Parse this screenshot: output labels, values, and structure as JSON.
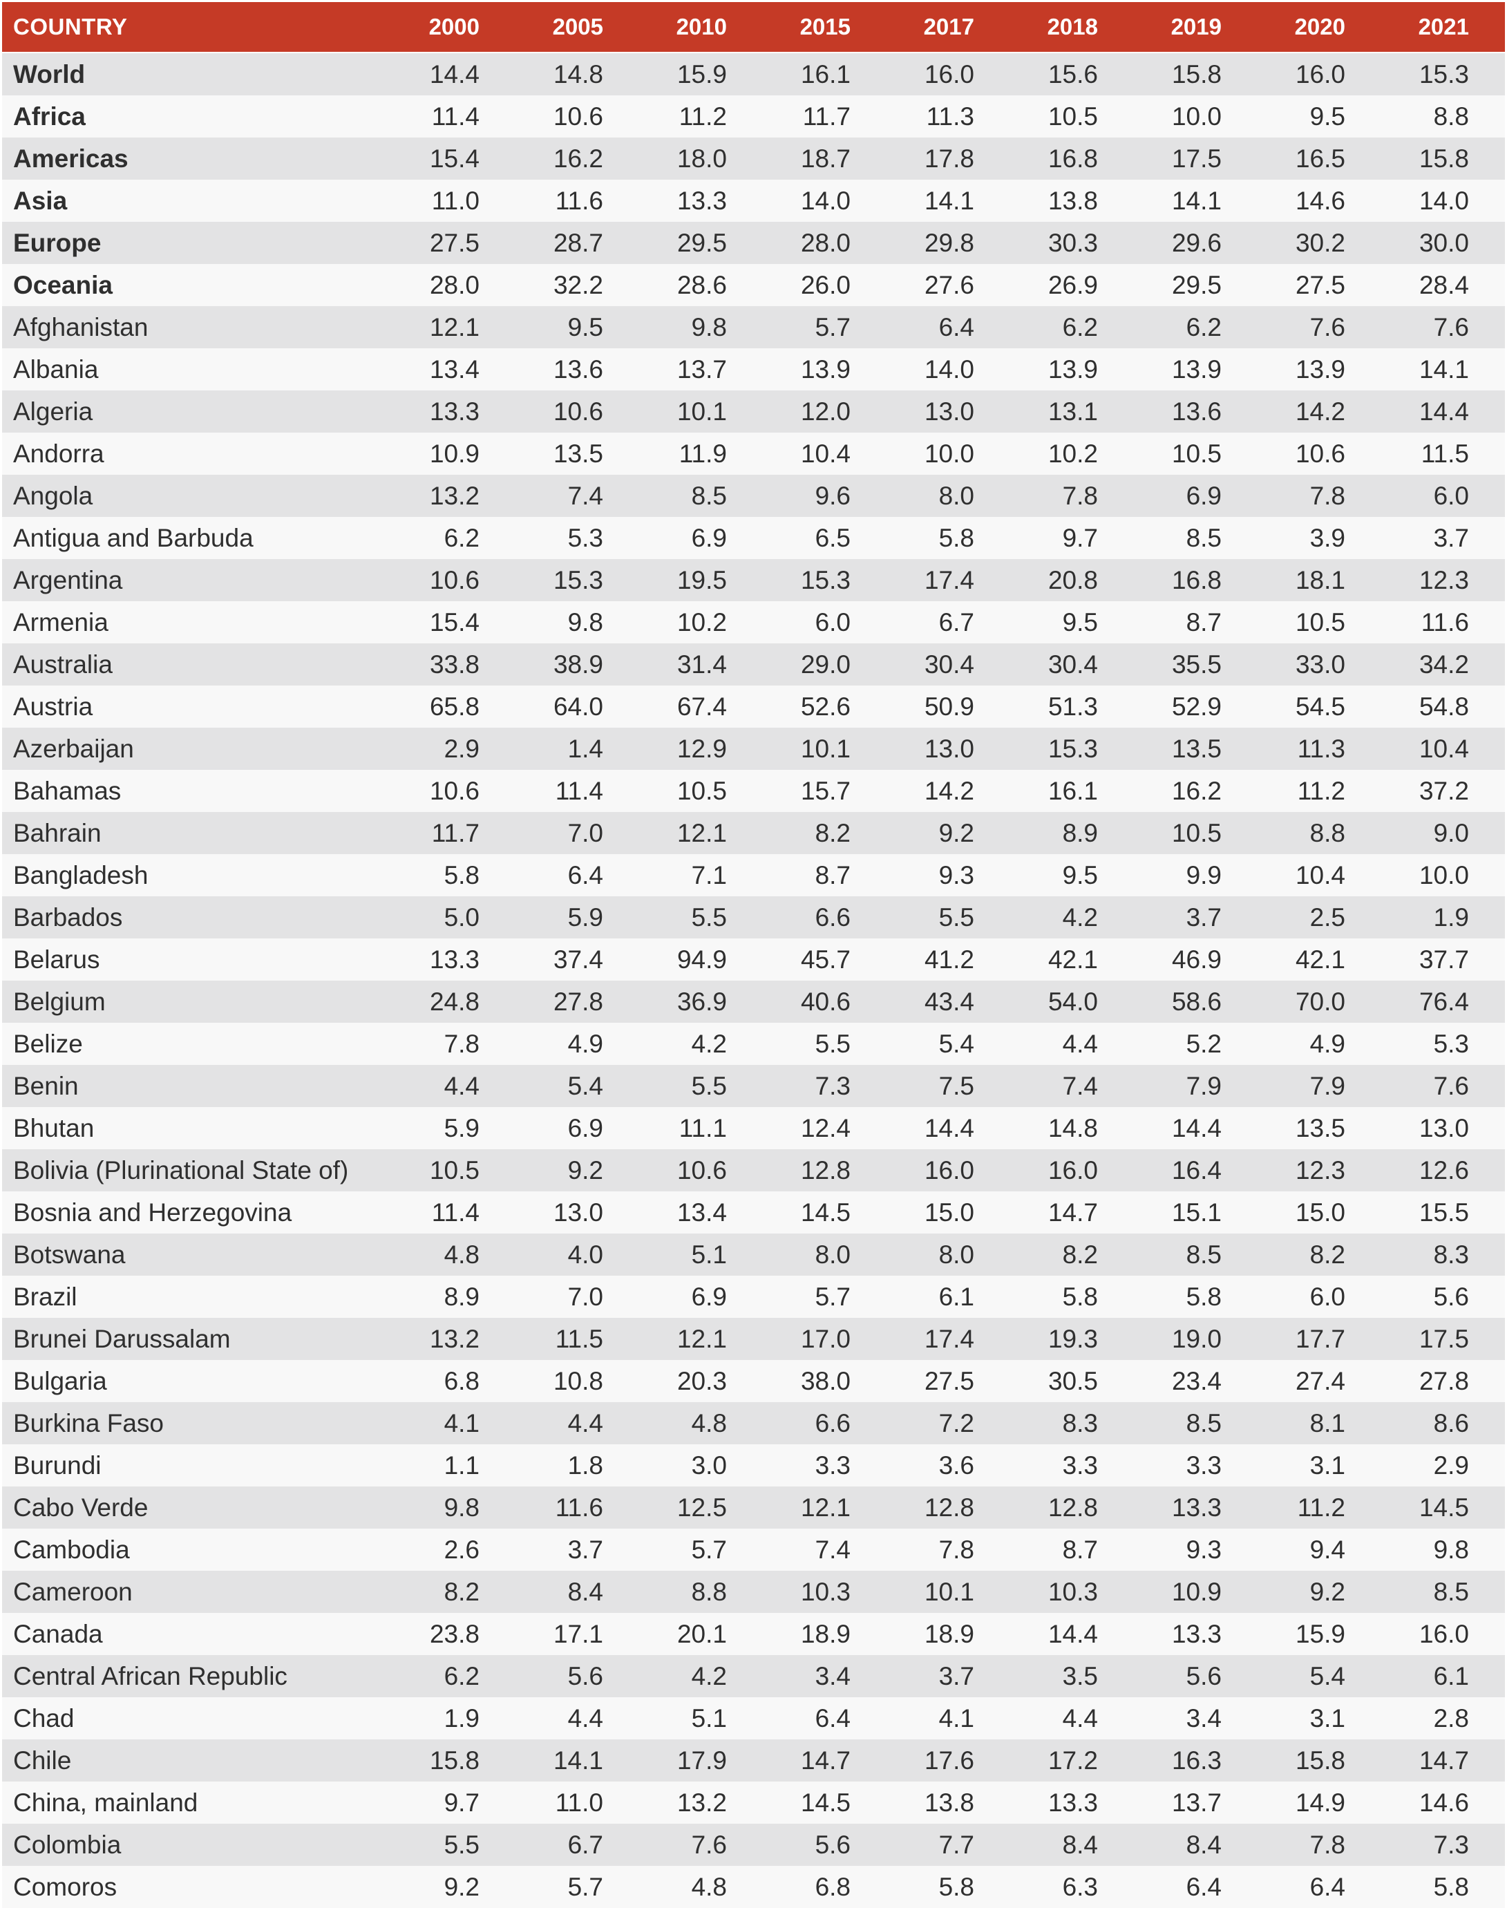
{
  "colors": {
    "header_bg": "#c53a26",
    "header_text": "#ffffff",
    "row_odd_bg": "#e3e3e4",
    "row_even_bg": "#f8f8f8",
    "body_text": "#2f2f2f"
  },
  "chart_data": {
    "type": "table",
    "columns": [
      "COUNTRY",
      "2000",
      "2005",
      "2010",
      "2015",
      "2017",
      "2018",
      "2019",
      "2020",
      "2021"
    ],
    "rows": [
      {
        "country": "World",
        "bold": true,
        "values": [
          "14.4",
          "14.8",
          "15.9",
          "16.1",
          "16.0",
          "15.6",
          "15.8",
          "16.0",
          "15.3"
        ]
      },
      {
        "country": "Africa",
        "bold": true,
        "values": [
          "11.4",
          "10.6",
          "11.2",
          "11.7",
          "11.3",
          "10.5",
          "10.0",
          "9.5",
          "8.8"
        ]
      },
      {
        "country": "Americas",
        "bold": true,
        "values": [
          "15.4",
          "16.2",
          "18.0",
          "18.7",
          "17.8",
          "16.8",
          "17.5",
          "16.5",
          "15.8"
        ]
      },
      {
        "country": "Asia",
        "bold": true,
        "values": [
          "11.0",
          "11.6",
          "13.3",
          "14.0",
          "14.1",
          "13.8",
          "14.1",
          "14.6",
          "14.0"
        ]
      },
      {
        "country": "Europe",
        "bold": true,
        "values": [
          "27.5",
          "28.7",
          "29.5",
          "28.0",
          "29.8",
          "30.3",
          "29.6",
          "30.2",
          "30.0"
        ]
      },
      {
        "country": "Oceania",
        "bold": true,
        "values": [
          "28.0",
          "32.2",
          "28.6",
          "26.0",
          "27.6",
          "26.9",
          "29.5",
          "27.5",
          "28.4"
        ]
      },
      {
        "country": "Afghanistan",
        "bold": false,
        "values": [
          "12.1",
          "9.5",
          "9.8",
          "5.7",
          "6.4",
          "6.2",
          "6.2",
          "7.6",
          "7.6"
        ]
      },
      {
        "country": "Albania",
        "bold": false,
        "values": [
          "13.4",
          "13.6",
          "13.7",
          "13.9",
          "14.0",
          "13.9",
          "13.9",
          "13.9",
          "14.1"
        ]
      },
      {
        "country": "Algeria",
        "bold": false,
        "values": [
          "13.3",
          "10.6",
          "10.1",
          "12.0",
          "13.0",
          "13.1",
          "13.6",
          "14.2",
          "14.4"
        ]
      },
      {
        "country": "Andorra",
        "bold": false,
        "values": [
          "10.9",
          "13.5",
          "11.9",
          "10.4",
          "10.0",
          "10.2",
          "10.5",
          "10.6",
          "11.5"
        ]
      },
      {
        "country": "Angola",
        "bold": false,
        "values": [
          "13.2",
          "7.4",
          "8.5",
          "9.6",
          "8.0",
          "7.8",
          "6.9",
          "7.8",
          "6.0"
        ]
      },
      {
        "country": "Antigua and Barbuda",
        "bold": false,
        "values": [
          "6.2",
          "5.3",
          "6.9",
          "6.5",
          "5.8",
          "9.7",
          "8.5",
          "3.9",
          "3.7"
        ]
      },
      {
        "country": "Argentina",
        "bold": false,
        "values": [
          "10.6",
          "15.3",
          "19.5",
          "15.3",
          "17.4",
          "20.8",
          "16.8",
          "18.1",
          "12.3"
        ]
      },
      {
        "country": "Armenia",
        "bold": false,
        "values": [
          "15.4",
          "9.8",
          "10.2",
          "6.0",
          "6.7",
          "9.5",
          "8.7",
          "10.5",
          "11.6"
        ]
      },
      {
        "country": "Australia",
        "bold": false,
        "values": [
          "33.8",
          "38.9",
          "31.4",
          "29.0",
          "30.4",
          "30.4",
          "35.5",
          "33.0",
          "34.2"
        ]
      },
      {
        "country": "Austria",
        "bold": false,
        "values": [
          "65.8",
          "64.0",
          "67.4",
          "52.6",
          "50.9",
          "51.3",
          "52.9",
          "54.5",
          "54.8"
        ]
      },
      {
        "country": "Azerbaijan",
        "bold": false,
        "values": [
          "2.9",
          "1.4",
          "12.9",
          "10.1",
          "13.0",
          "15.3",
          "13.5",
          "11.3",
          "10.4"
        ]
      },
      {
        "country": "Bahamas",
        "bold": false,
        "values": [
          "10.6",
          "11.4",
          "10.5",
          "15.7",
          "14.2",
          "16.1",
          "16.2",
          "11.2",
          "37.2"
        ]
      },
      {
        "country": "Bahrain",
        "bold": false,
        "values": [
          "11.7",
          "7.0",
          "12.1",
          "8.2",
          "9.2",
          "8.9",
          "10.5",
          "8.8",
          "9.0"
        ]
      },
      {
        "country": "Bangladesh",
        "bold": false,
        "values": [
          "5.8",
          "6.4",
          "7.1",
          "8.7",
          "9.3",
          "9.5",
          "9.9",
          "10.4",
          "10.0"
        ]
      },
      {
        "country": "Barbados",
        "bold": false,
        "values": [
          "5.0",
          "5.9",
          "5.5",
          "6.6",
          "5.5",
          "4.2",
          "3.7",
          "2.5",
          "1.9"
        ]
      },
      {
        "country": "Belarus",
        "bold": false,
        "values": [
          "13.3",
          "37.4",
          "94.9",
          "45.7",
          "41.2",
          "42.1",
          "46.9",
          "42.1",
          "37.7"
        ]
      },
      {
        "country": "Belgium",
        "bold": false,
        "values": [
          "24.8",
          "27.8",
          "36.9",
          "40.6",
          "43.4",
          "54.0",
          "58.6",
          "70.0",
          "76.4"
        ]
      },
      {
        "country": "Belize",
        "bold": false,
        "values": [
          "7.8",
          "4.9",
          "4.2",
          "5.5",
          "5.4",
          "4.4",
          "5.2",
          "4.9",
          "5.3"
        ]
      },
      {
        "country": "Benin",
        "bold": false,
        "values": [
          "4.4",
          "5.4",
          "5.5",
          "7.3",
          "7.5",
          "7.4",
          "7.9",
          "7.9",
          "7.6"
        ]
      },
      {
        "country": "Bhutan",
        "bold": false,
        "values": [
          "5.9",
          "6.9",
          "11.1",
          "12.4",
          "14.4",
          "14.8",
          "14.4",
          "13.5",
          "13.0"
        ]
      },
      {
        "country": "Bolivia (Plurinational State of)",
        "bold": false,
        "values": [
          "10.5",
          "9.2",
          "10.6",
          "12.8",
          "16.0",
          "16.0",
          "16.4",
          "12.3",
          "12.6"
        ]
      },
      {
        "country": "Bosnia and Herzegovina",
        "bold": false,
        "values": [
          "11.4",
          "13.0",
          "13.4",
          "14.5",
          "15.0",
          "14.7",
          "15.1",
          "15.0",
          "15.5"
        ]
      },
      {
        "country": "Botswana",
        "bold": false,
        "values": [
          "4.8",
          "4.0",
          "5.1",
          "8.0",
          "8.0",
          "8.2",
          "8.5",
          "8.2",
          "8.3"
        ]
      },
      {
        "country": "Brazil",
        "bold": false,
        "values": [
          "8.9",
          "7.0",
          "6.9",
          "5.7",
          "6.1",
          "5.8",
          "5.8",
          "6.0",
          "5.6"
        ]
      },
      {
        "country": "Brunei Darussalam",
        "bold": false,
        "values": [
          "13.2",
          "11.5",
          "12.1",
          "17.0",
          "17.4",
          "19.3",
          "19.0",
          "17.7",
          "17.5"
        ]
      },
      {
        "country": "Bulgaria",
        "bold": false,
        "values": [
          "6.8",
          "10.8",
          "20.3",
          "38.0",
          "27.5",
          "30.5",
          "23.4",
          "27.4",
          "27.8"
        ]
      },
      {
        "country": "Burkina Faso",
        "bold": false,
        "values": [
          "4.1",
          "4.4",
          "4.8",
          "6.6",
          "7.2",
          "8.3",
          "8.5",
          "8.1",
          "8.6"
        ]
      },
      {
        "country": "Burundi",
        "bold": false,
        "values": [
          "1.1",
          "1.8",
          "3.0",
          "3.3",
          "3.6",
          "3.3",
          "3.3",
          "3.1",
          "2.9"
        ]
      },
      {
        "country": "Cabo Verde",
        "bold": false,
        "values": [
          "9.8",
          "11.6",
          "12.5",
          "12.1",
          "12.8",
          "12.8",
          "13.3",
          "11.2",
          "14.5"
        ]
      },
      {
        "country": "Cambodia",
        "bold": false,
        "values": [
          "2.6",
          "3.7",
          "5.7",
          "7.4",
          "7.8",
          "8.7",
          "9.3",
          "9.4",
          "9.8"
        ]
      },
      {
        "country": "Cameroon",
        "bold": false,
        "values": [
          "8.2",
          "8.4",
          "8.8",
          "10.3",
          "10.1",
          "10.3",
          "10.9",
          "9.2",
          "8.5"
        ]
      },
      {
        "country": "Canada",
        "bold": false,
        "values": [
          "23.8",
          "17.1",
          "20.1",
          "18.9",
          "18.9",
          "14.4",
          "13.3",
          "15.9",
          "16.0"
        ]
      },
      {
        "country": "Central African Republic",
        "bold": false,
        "values": [
          "6.2",
          "5.6",
          "4.2",
          "3.4",
          "3.7",
          "3.5",
          "5.6",
          "5.4",
          "6.1"
        ]
      },
      {
        "country": "Chad",
        "bold": false,
        "values": [
          "1.9",
          "4.4",
          "5.1",
          "6.4",
          "4.1",
          "4.4",
          "3.4",
          "3.1",
          "2.8"
        ]
      },
      {
        "country": "Chile",
        "bold": false,
        "values": [
          "15.8",
          "14.1",
          "17.9",
          "14.7",
          "17.6",
          "17.2",
          "16.3",
          "15.8",
          "14.7"
        ]
      },
      {
        "country": "China, mainland",
        "bold": false,
        "values": [
          "9.7",
          "11.0",
          "13.2",
          "14.5",
          "13.8",
          "13.3",
          "13.7",
          "14.9",
          "14.6"
        ]
      },
      {
        "country": "Colombia",
        "bold": false,
        "values": [
          "5.5",
          "6.7",
          "7.6",
          "5.6",
          "7.7",
          "8.4",
          "8.4",
          "7.8",
          "7.3"
        ]
      },
      {
        "country": "Comoros",
        "bold": false,
        "values": [
          "9.2",
          "5.7",
          "4.8",
          "6.8",
          "5.8",
          "6.3",
          "6.4",
          "6.4",
          "5.8"
        ]
      }
    ]
  }
}
